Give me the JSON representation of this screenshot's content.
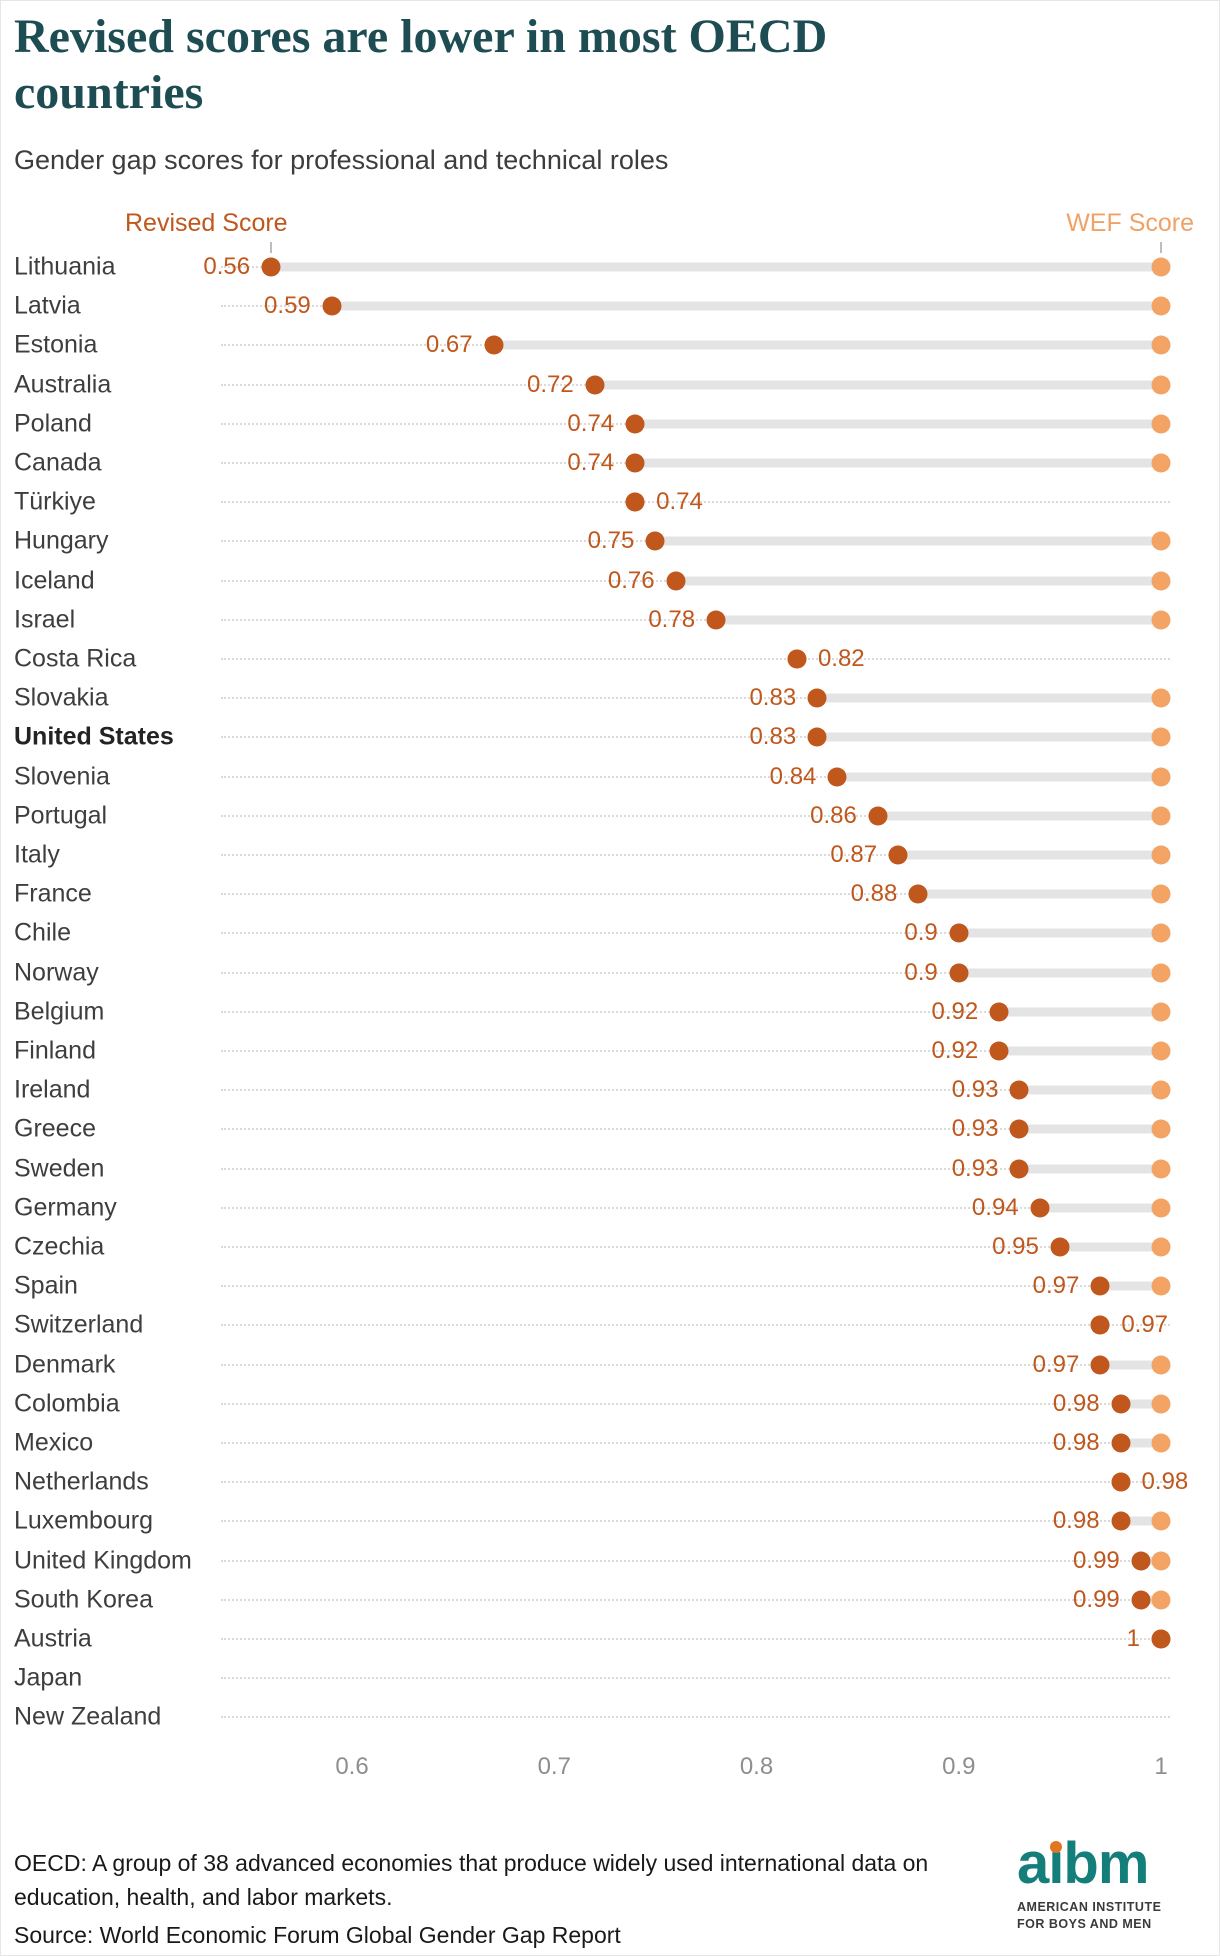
{
  "chart_data": {
    "type": "dumbbell",
    "title": "Revised scores are lower in most OECD countries",
    "subtitle": "Gender gap scores for professional and technical roles",
    "series_labels": {
      "revised": "Revised Score",
      "wef": "WEF Score"
    },
    "colors": {
      "revised_dot": "#c0571c",
      "wef_dot": "#f3a464",
      "connector": "#e4e4e4",
      "title": "#1d4d52"
    },
    "x_axis": {
      "min": 0.55,
      "max": 1.01,
      "ticks": [
        0.6,
        0.7,
        0.8,
        0.9,
        1
      ],
      "tick_labels": [
        "0.6",
        "0.7",
        "0.8",
        "0.9",
        "1"
      ],
      "grid": "dotted horizontal row lines"
    },
    "legend_position": "column labels above first row, left = Revised Score, right = WEF Score",
    "rows": [
      {
        "country": "Lithuania",
        "revised": 0.56,
        "wef": 1,
        "value_label": "0.56",
        "label_side": "left",
        "bold": false
      },
      {
        "country": "Latvia",
        "revised": 0.59,
        "wef": 1,
        "value_label": "0.59",
        "label_side": "left",
        "bold": false
      },
      {
        "country": "Estonia",
        "revised": 0.67,
        "wef": 1,
        "value_label": "0.67",
        "label_side": "left",
        "bold": false
      },
      {
        "country": "Australia",
        "revised": 0.72,
        "wef": 1,
        "value_label": "0.72",
        "label_side": "left",
        "bold": false
      },
      {
        "country": "Poland",
        "revised": 0.74,
        "wef": 1,
        "value_label": "0.74",
        "label_side": "left",
        "bold": false
      },
      {
        "country": "Canada",
        "revised": 0.74,
        "wef": 1,
        "value_label": "0.74",
        "label_side": "left",
        "bold": false
      },
      {
        "country": "Türkiye",
        "revised": 0.74,
        "wef": 0.74,
        "value_label": "0.74",
        "label_side": "right",
        "bold": false
      },
      {
        "country": "Hungary",
        "revised": 0.75,
        "wef": 1,
        "value_label": "0.75",
        "label_side": "left",
        "bold": false
      },
      {
        "country": "Iceland",
        "revised": 0.76,
        "wef": 1,
        "value_label": "0.76",
        "label_side": "left",
        "bold": false
      },
      {
        "country": "Israel",
        "revised": 0.78,
        "wef": 1,
        "value_label": "0.78",
        "label_side": "left",
        "bold": false
      },
      {
        "country": "Costa Rica",
        "revised": 0.82,
        "wef": 0.82,
        "value_label": "0.82",
        "label_side": "right",
        "bold": false
      },
      {
        "country": "Slovakia",
        "revised": 0.83,
        "wef": 1,
        "value_label": "0.83",
        "label_side": "left",
        "bold": false
      },
      {
        "country": "United States",
        "revised": 0.83,
        "wef": 1,
        "value_label": "0.83",
        "label_side": "left",
        "bold": true
      },
      {
        "country": "Slovenia",
        "revised": 0.84,
        "wef": 1,
        "value_label": "0.84",
        "label_side": "left",
        "bold": false
      },
      {
        "country": "Portugal",
        "revised": 0.86,
        "wef": 1,
        "value_label": "0.86",
        "label_side": "left",
        "bold": false
      },
      {
        "country": "Italy",
        "revised": 0.87,
        "wef": 1,
        "value_label": "0.87",
        "label_side": "left",
        "bold": false
      },
      {
        "country": "France",
        "revised": 0.88,
        "wef": 1,
        "value_label": "0.88",
        "label_side": "left",
        "bold": false
      },
      {
        "country": "Chile",
        "revised": 0.9,
        "wef": 1,
        "value_label": "0.9",
        "label_side": "left",
        "bold": false
      },
      {
        "country": "Norway",
        "revised": 0.9,
        "wef": 1,
        "value_label": "0.9",
        "label_side": "left",
        "bold": false
      },
      {
        "country": "Belgium",
        "revised": 0.92,
        "wef": 1,
        "value_label": "0.92",
        "label_side": "left",
        "bold": false
      },
      {
        "country": "Finland",
        "revised": 0.92,
        "wef": 1,
        "value_label": "0.92",
        "label_side": "left",
        "bold": false
      },
      {
        "country": "Ireland",
        "revised": 0.93,
        "wef": 1,
        "value_label": "0.93",
        "label_side": "left",
        "bold": false
      },
      {
        "country": "Greece",
        "revised": 0.93,
        "wef": 1,
        "value_label": "0.93",
        "label_side": "left",
        "bold": false
      },
      {
        "country": "Sweden",
        "revised": 0.93,
        "wef": 1,
        "value_label": "0.93",
        "label_side": "left",
        "bold": false
      },
      {
        "country": "Germany",
        "revised": 0.94,
        "wef": 1,
        "value_label": "0.94",
        "label_side": "left",
        "bold": false
      },
      {
        "country": "Czechia",
        "revised": 0.95,
        "wef": 1,
        "value_label": "0.95",
        "label_side": "left",
        "bold": false
      },
      {
        "country": "Spain",
        "revised": 0.97,
        "wef": 1,
        "value_label": "0.97",
        "label_side": "left",
        "bold": false
      },
      {
        "country": "Switzerland",
        "revised": 0.97,
        "wef": 0.97,
        "value_label": "0.97",
        "label_side": "right",
        "bold": false
      },
      {
        "country": "Denmark",
        "revised": 0.97,
        "wef": 1,
        "value_label": "0.97",
        "label_side": "left",
        "bold": false
      },
      {
        "country": "Colombia",
        "revised": 0.98,
        "wef": 1,
        "value_label": "0.98",
        "label_side": "left",
        "bold": false
      },
      {
        "country": "Mexico",
        "revised": 0.98,
        "wef": 1,
        "value_label": "0.98",
        "label_side": "left",
        "bold": false
      },
      {
        "country": "Netherlands",
        "revised": 0.98,
        "wef": 0.98,
        "value_label": "0.98",
        "label_side": "right",
        "bold": false
      },
      {
        "country": "Luxembourg",
        "revised": 0.98,
        "wef": 1,
        "value_label": "0.98",
        "label_side": "left",
        "bold": false
      },
      {
        "country": "United Kingdom",
        "revised": 0.99,
        "wef": 1,
        "value_label": "0.99",
        "label_side": "left",
        "bold": false
      },
      {
        "country": "South Korea",
        "revised": 0.99,
        "wef": 1,
        "value_label": "0.99",
        "label_side": "left",
        "bold": false
      },
      {
        "country": "Austria",
        "revised": 1,
        "wef": 1,
        "value_label": "1",
        "label_side": "left",
        "bold": false
      },
      {
        "country": "Japan",
        "revised": null,
        "wef": null,
        "value_label": null,
        "label_side": null,
        "bold": false
      },
      {
        "country": "New Zealand",
        "revised": null,
        "wef": null,
        "value_label": null,
        "label_side": null,
        "bold": false
      }
    ]
  },
  "footer": {
    "note": "OECD: A group of 38 advanced economies that produce widely used international data on education, health, and labor markets.",
    "source": "Source: World Economic Forum Global Gender Gap Report"
  },
  "logo": {
    "wordmark": "aibm",
    "subtext_line1": "AMERICAN INSTITUTE",
    "subtext_line2": "FOR BOYS AND MEN"
  }
}
